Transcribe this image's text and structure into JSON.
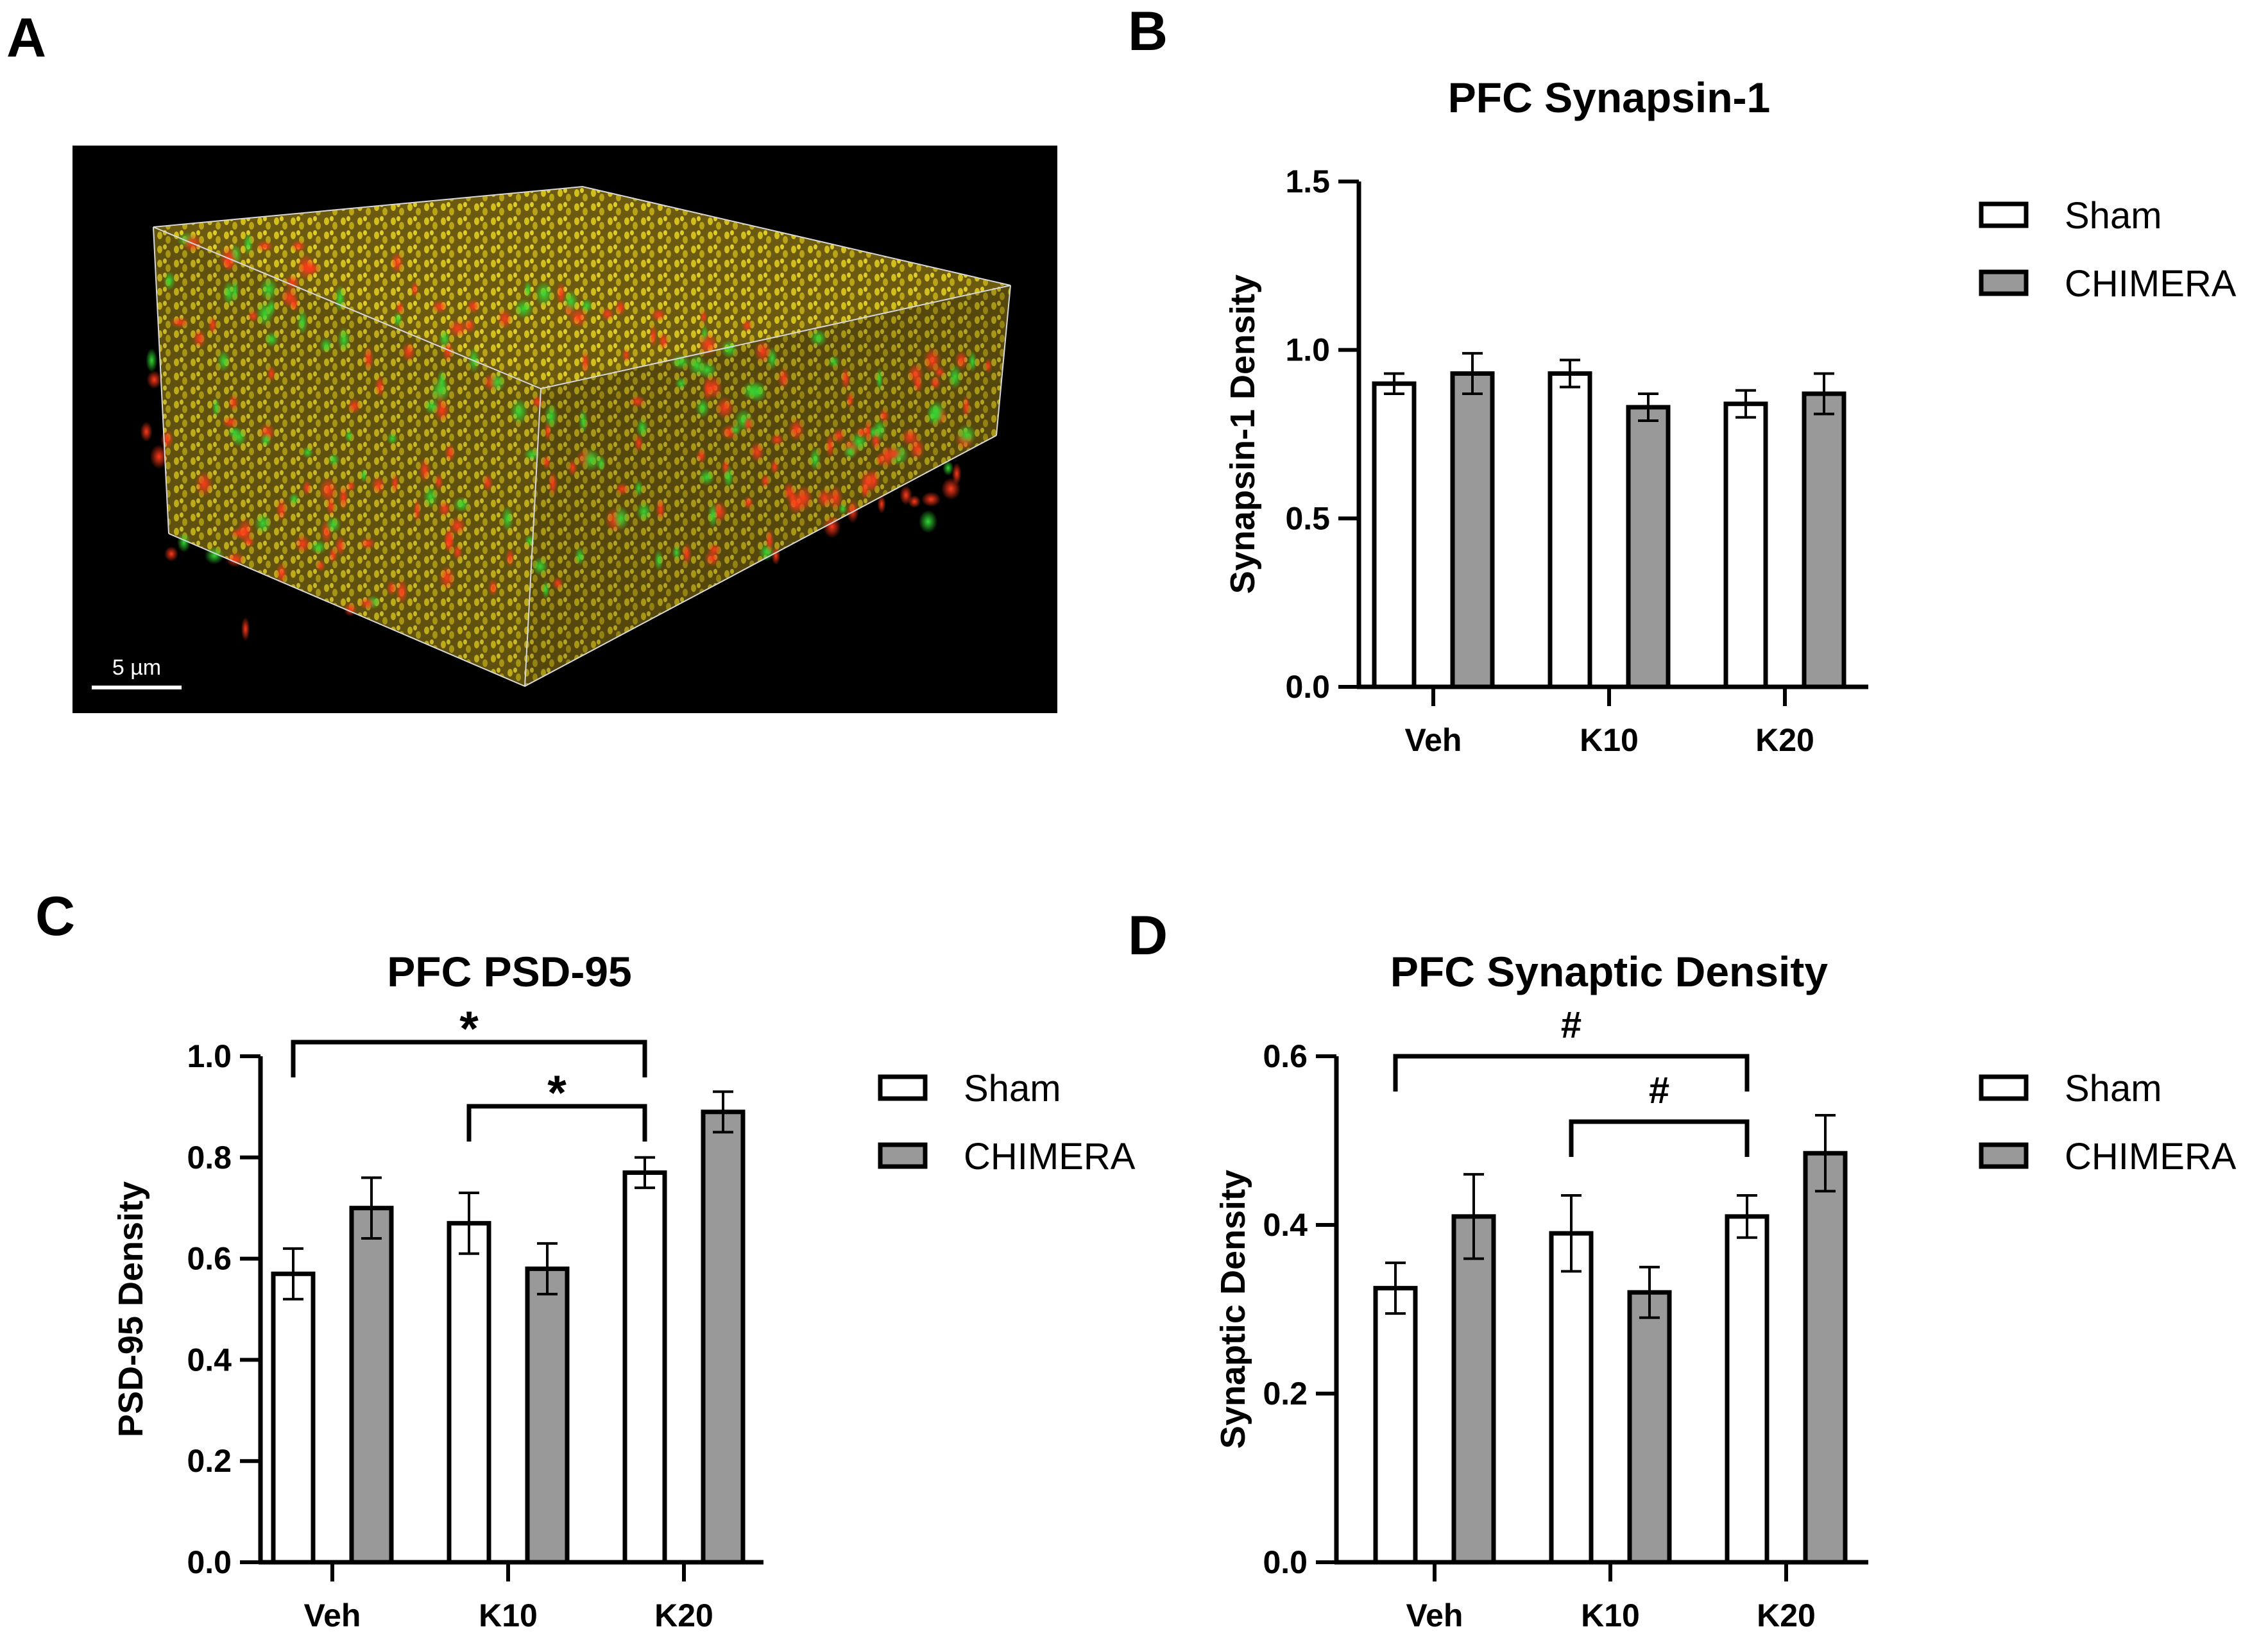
{
  "panels": {
    "a": {
      "letter": "A",
      "scale_bar_label": "5 µm"
    },
    "b": {
      "letter": "B"
    },
    "c": {
      "letter": "C"
    },
    "d": {
      "letter": "D"
    }
  },
  "colors": {
    "sham_fill": "#ffffff",
    "chimera_fill": "#999999",
    "stroke": "#000000",
    "micrograph_bg": "#000000",
    "synapse_yellow": "#c8b400",
    "synapse_red": "#e8301c",
    "synapse_green": "#2fbf2f"
  },
  "chart_data": [
    {
      "id": "b",
      "type": "bar",
      "title": "PFC Synapsin-1",
      "xlabel": "",
      "ylabel": "Synapsin-1 Density",
      "categories": [
        "Veh",
        "K10",
        "K20"
      ],
      "ylim": [
        0,
        1.5
      ],
      "yticks": [
        "0.0",
        "0.5",
        "1.0",
        "1.5"
      ],
      "series": [
        {
          "name": "Sham",
          "values": [
            0.9,
            0.93,
            0.84
          ],
          "errors": [
            0.03,
            0.04,
            0.04
          ]
        },
        {
          "name": "CHIMERA",
          "values": [
            0.93,
            0.83,
            0.87
          ],
          "errors": [
            0.06,
            0.04,
            0.06
          ]
        }
      ],
      "legend": [
        "Sham",
        "CHIMERA"
      ],
      "legend_position": "right",
      "significance": []
    },
    {
      "id": "c",
      "type": "bar",
      "title": "PFC PSD-95",
      "xlabel": "",
      "ylabel": "PSD-95 Density",
      "categories": [
        "Veh",
        "K10",
        "K20"
      ],
      "ylim": [
        0,
        1.0
      ],
      "yticks": [
        "0.0",
        "0.2",
        "0.4",
        "0.6",
        "0.8",
        "1.0"
      ],
      "series": [
        {
          "name": "Sham",
          "values": [
            0.57,
            0.67,
            0.77
          ],
          "errors": [
            0.05,
            0.06,
            0.03
          ]
        },
        {
          "name": "CHIMERA",
          "values": [
            0.7,
            0.58,
            0.89
          ],
          "errors": [
            0.06,
            0.05,
            0.04
          ]
        }
      ],
      "legend": [
        "Sham",
        "CHIMERA"
      ],
      "legend_position": "right",
      "significance": [
        {
          "from": "Veh",
          "to": "K20",
          "series": "Sham",
          "label": "*"
        },
        {
          "from": "K10",
          "to": "K20",
          "series": "Sham",
          "label": "*"
        }
      ]
    },
    {
      "id": "d",
      "type": "bar",
      "title": "PFC Synaptic Density",
      "xlabel": "",
      "ylabel": "Synaptic Density",
      "categories": [
        "Veh",
        "K10",
        "K20"
      ],
      "ylim": [
        0,
        0.6
      ],
      "yticks": [
        "0.0",
        "0.2",
        "0.4",
        "0.6"
      ],
      "series": [
        {
          "name": "Sham",
          "values": [
            0.325,
            0.39,
            0.41
          ],
          "errors": [
            0.03,
            0.045,
            0.025
          ]
        },
        {
          "name": "CHIMERA",
          "values": [
            0.41,
            0.32,
            0.485
          ],
          "errors": [
            0.05,
            0.03,
            0.045
          ]
        }
      ],
      "legend": [
        "Sham",
        "CHIMERA"
      ],
      "legend_position": "right",
      "significance": [
        {
          "from": "Veh",
          "to": "K20",
          "series": "Sham",
          "label": "#"
        },
        {
          "from": "K10",
          "to": "K20",
          "series": "Sham",
          "label": "#"
        }
      ]
    }
  ]
}
